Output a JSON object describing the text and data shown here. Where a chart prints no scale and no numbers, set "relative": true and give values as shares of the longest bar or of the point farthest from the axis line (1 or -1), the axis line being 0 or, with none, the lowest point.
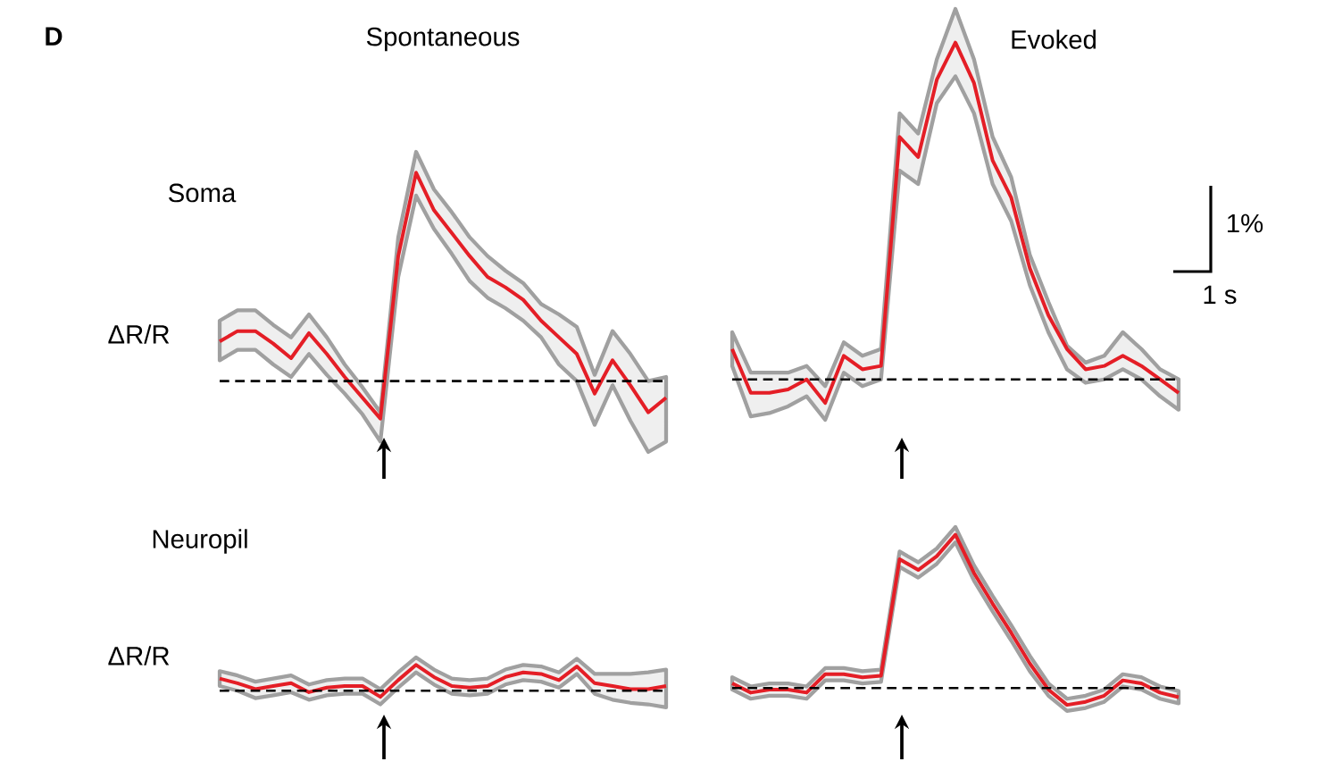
{
  "chart_data": [
    {
      "type": "line",
      "relative": true,
      "title": "Spontaneous",
      "ylabel": "ΔR/R",
      "annotations": [
        "**D**",
        "Soma"
      ],
      "categories": [
        null,
        null,
        null,
        null,
        null,
        null,
        null,
        null,
        null,
        null,
        null,
        null,
        null,
        null,
        null,
        null,
        null,
        null,
        null,
        null,
        null,
        null,
        null,
        null,
        null,
        null
      ],
      "ref_lines": [
        {
          "axis": "y",
          "value": 0,
          "line_style": "dashed",
          "color": "#000000"
        }
      ],
      "series": [
        {
          "color": "#e41e26",
          "values": [
            0.19,
            0.24,
            0.24,
            0.18,
            0.11,
            0.23,
            0.13,
            0.02,
            -0.08,
            -0.18,
            0.6,
            1.0,
            0.82,
            0.71,
            0.6,
            0.5,
            0.45,
            0.39,
            0.29,
            0.21,
            0.13,
            -0.06,
            0.1,
            -0.02,
            -0.15,
            -0.08
          ],
          "upper": [
            0.29,
            0.34,
            0.34,
            0.27,
            0.21,
            0.32,
            0.21,
            0.08,
            -0.03,
            -0.15,
            0.69,
            1.1,
            0.92,
            0.81,
            0.69,
            0.6,
            0.53,
            0.47,
            0.37,
            0.32,
            0.26,
            0.03,
            0.24,
            0.13,
            0.0,
            0.02
          ],
          "lower": [
            0.1,
            0.15,
            0.15,
            0.08,
            0.02,
            0.13,
            0.03,
            -0.06,
            -0.16,
            -0.29,
            0.5,
            0.89,
            0.73,
            0.61,
            0.48,
            0.4,
            0.35,
            0.29,
            0.21,
            0.08,
            0.0,
            -0.21,
            -0.02,
            -0.19,
            -0.34,
            -0.29
          ]
        }
      ]
    },
    {
      "type": "line",
      "relative": true,
      "title": "Evoked",
      "annotations": [
        "1%",
        "1 s"
      ],
      "categories": [
        null,
        null,
        null,
        null,
        null,
        null,
        null,
        null,
        null,
        null,
        null,
        null,
        null,
        null,
        null,
        null,
        null,
        null,
        null,
        null,
        null,
        null,
        null,
        null,
        null
      ],
      "ref_lines": [
        {
          "axis": "y",
          "value": 0,
          "line_style": "dashed",
          "color": "#000000"
        }
      ],
      "series": [
        {
          "color": "#e41e26",
          "values": [
            0.09,
            -0.04,
            -0.04,
            -0.03,
            0.0,
            -0.07,
            0.07,
            0.03,
            0.04,
            0.72,
            0.66,
            0.89,
            1.0,
            0.88,
            0.65,
            0.54,
            0.33,
            0.19,
            0.09,
            0.03,
            0.04,
            0.07,
            0.04,
            0.0,
            -0.04
          ],
          "upper": [
            0.14,
            0.02,
            0.01994,
            0.02,
            0.04,
            -0.02,
            0.11,
            0.07,
            0.09,
            0.79,
            0.73,
            0.95,
            1.1,
            0.95,
            0.72,
            0.6,
            0.37,
            0.23,
            0.1,
            0.05,
            0.07,
            0.14,
            0.09,
            0.03,
            0.0
          ],
          "lower": [
            0.04,
            -0.11,
            -0.1,
            -0.08,
            -0.05,
            -0.12,
            0.02,
            -0.02,
            0.0,
            0.62,
            0.58,
            0.82,
            0.9,
            0.79,
            0.58,
            0.47,
            0.28,
            0.14,
            0.03,
            -0.01,
            0.0,
            0.03,
            0.0,
            -0.05,
            -0.09
          ]
        }
      ]
    },
    {
      "type": "line",
      "relative": true,
      "ylabel": "ΔR/R",
      "annotations": [
        "Neuropil"
      ],
      "categories": [
        null,
        null,
        null,
        null,
        null,
        null,
        null,
        null,
        null,
        null,
        null,
        null,
        null,
        null,
        null,
        null,
        null,
        null,
        null,
        null,
        null,
        null,
        null,
        null,
        null,
        null
      ],
      "ref_lines": [
        {
          "axis": "y",
          "value": 0,
          "line_style": "dashed",
          "color": "#000000"
        }
      ],
      "series": [
        {
          "color": "#e41e26",
          "values": [
            0.47,
            0.29,
            0.06,
            0.18,
            0.29,
            -0.06,
            0.12,
            0.18,
            0.18,
            -0.24,
            0.41,
            1.0,
            0.53,
            0.18,
            0.12,
            0.18,
            0.53,
            0.71,
            0.65,
            0.41,
            0.94,
            0.29,
            0.18,
            0.06,
            0.06,
            0.18
          ],
          "upper": [
            0.76,
            0.59,
            0.35,
            0.47,
            0.59,
            0.24,
            0.41,
            0.47,
            0.47,
            0.06,
            0.71,
            1.29,
            0.82,
            0.47,
            0.41,
            0.47,
            0.82,
            1.0,
            0.94,
            0.71,
            1.24,
            0.65,
            0.6488,
            0.65,
            0.71,
            0.82
          ],
          "lower": [
            0.18,
            0.0,
            -0.29,
            -0.18,
            -0.06,
            -0.35,
            -0.18,
            -0.12,
            -0.12,
            -0.53,
            0.12,
            0.71,
            0.24,
            -0.12,
            -0.18,
            -0.12,
            0.24,
            0.41,
            0.35,
            0.12,
            0.65,
            -0.12,
            -0.35,
            -0.47,
            -0.53,
            -0.65
          ]
        }
      ]
    },
    {
      "type": "line",
      "relative": true,
      "categories": [
        null,
        null,
        null,
        null,
        null,
        null,
        null,
        null,
        null,
        null,
        null,
        null,
        null,
        null,
        null,
        null,
        null,
        null,
        null,
        null,
        null,
        null,
        null,
        null,
        null
      ],
      "ref_lines": [
        {
          "axis": "y",
          "value": 0,
          "line_style": "dashed",
          "color": "#000000"
        }
      ],
      "series": [
        {
          "color": "#e41e26",
          "values": [
            0.03,
            -0.03,
            -0.01,
            -0.01,
            -0.03,
            0.09,
            0.09,
            0.07,
            0.08,
            0.84,
            0.77,
            0.86,
            1.0,
            0.75,
            0.55,
            0.36,
            0.16,
            -0.01,
            -0.11,
            -0.09,
            -0.05,
            0.05,
            0.03,
            -0.03,
            -0.06
          ],
          "upper": [
            0.07,
            0.01,
            0.03,
            0.03,
            0.01,
            0.13,
            0.13,
            0.11,
            0.12,
            0.89,
            0.82,
            0.91,
            1.05,
            0.8,
            0.6,
            0.41,
            0.21,
            0.03,
            -0.07,
            -0.05,
            -0.01,
            0.09,
            0.07,
            0.01,
            -0.02
          ],
          "lower": [
            -0.01,
            -0.07,
            -0.05,
            -0.05,
            -0.07,
            0.05,
            0.05,
            0.03,
            0.04,
            0.79,
            0.72,
            0.81,
            0.95,
            0.7,
            0.5,
            0.31,
            0.11,
            -0.05,
            -0.15,
            -0.13,
            -0.09,
            0.01,
            -0.01,
            -0.07,
            -0.1
          ]
        }
      ]
    }
  ]
}
